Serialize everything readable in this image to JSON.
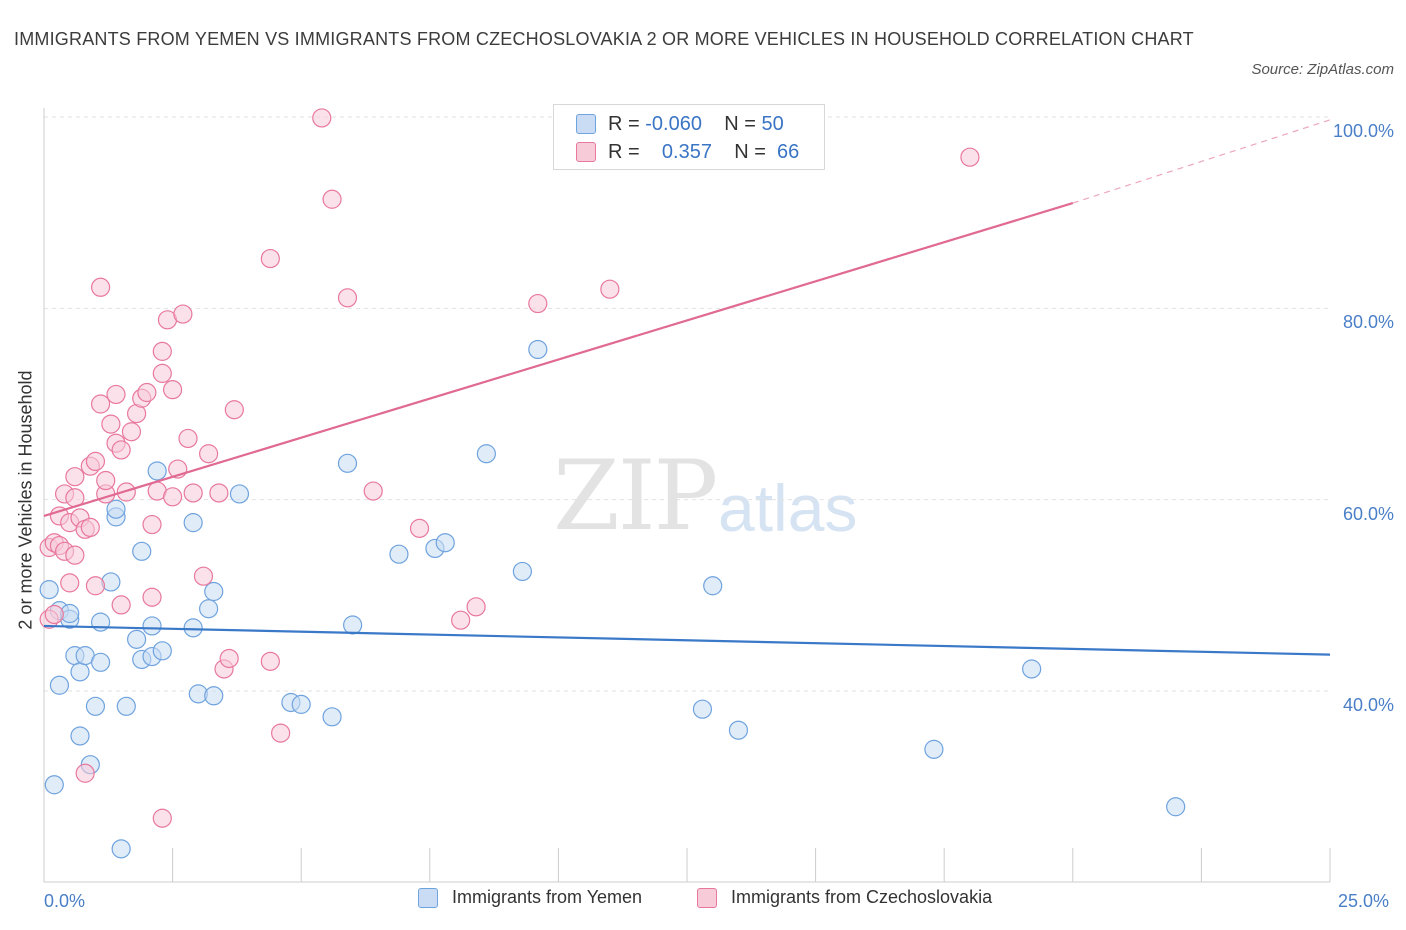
{
  "title": "IMMIGRANTS FROM YEMEN VS IMMIGRANTS FROM CZECHOSLOVAKIA 2 OR MORE VEHICLES IN HOUSEHOLD CORRELATION CHART",
  "source": "Source: ZipAtlas.com",
  "watermark": {
    "zip": "ZIP",
    "atlas": "atlas"
  },
  "colors": {
    "blue": "#6fa3de",
    "blue_fill": "#c9dcf4",
    "pink": "#e8789d",
    "pink_fill": "#f7cbd8",
    "blue_line": "#3a78c8",
    "pink_line": "#e06a93",
    "tick_text": "#4a7fc8"
  },
  "legend": {
    "rows": [
      {
        "r_label": "R =",
        "r_value": "-0.060",
        "n_label": "N =",
        "n_value": "50"
      },
      {
        "r_label": "R =",
        "r_value": "0.357",
        "n_label": "N =",
        "n_value": "66"
      }
    ]
  },
  "chart_data": {
    "type": "scatter",
    "xlabel": "",
    "ylabel": "2 or more Vehicles in Household",
    "xlim": [
      0,
      25
    ],
    "ylim": [
      20,
      100
    ],
    "x_tick_labels": [
      "0.0%",
      "25.0%"
    ],
    "y_tick_labels": [
      "40.0%",
      "60.0%",
      "80.0%",
      "100.0%"
    ],
    "y_ticks": [
      40,
      60,
      80,
      100
    ],
    "grid": true,
    "legend_position": "bottom",
    "series": [
      {
        "name": "Immigrants from Yemen",
        "color": "#6fa3de",
        "trend": {
          "x": [
            0,
            25
          ],
          "y": [
            46.8,
            43.8
          ]
        },
        "points": [
          [
            0.1,
            50.6
          ],
          [
            0.2,
            30.2
          ],
          [
            0.3,
            48.4
          ],
          [
            0.3,
            40.6
          ],
          [
            0.5,
            47.5
          ],
          [
            0.5,
            48.1
          ],
          [
            0.6,
            43.7
          ],
          [
            0.7,
            42.0
          ],
          [
            0.7,
            35.3
          ],
          [
            0.8,
            43.7
          ],
          [
            0.9,
            32.3
          ],
          [
            1.0,
            38.4
          ],
          [
            1.1,
            43.0
          ],
          [
            1.1,
            47.2
          ],
          [
            1.3,
            51.4
          ],
          [
            1.4,
            58.2
          ],
          [
            1.4,
            59.0
          ],
          [
            1.6,
            38.4
          ],
          [
            1.8,
            45.4
          ],
          [
            1.9,
            43.3
          ],
          [
            1.9,
            54.6
          ],
          [
            2.1,
            43.6
          ],
          [
            2.1,
            46.8
          ],
          [
            2.2,
            63.0
          ],
          [
            2.3,
            44.2
          ],
          [
            2.9,
            57.6
          ],
          [
            2.9,
            46.6
          ],
          [
            3.0,
            39.7
          ],
          [
            3.2,
            48.6
          ],
          [
            3.3,
            50.4
          ],
          [
            3.3,
            39.5
          ],
          [
            3.8,
            60.6
          ],
          [
            4.8,
            38.8
          ],
          [
            5.0,
            38.6
          ],
          [
            5.6,
            37.3
          ],
          [
            5.9,
            63.8
          ],
          [
            6.0,
            46.9
          ],
          [
            6.9,
            54.3
          ],
          [
            7.6,
            54.9
          ],
          [
            7.8,
            55.5
          ],
          [
            8.6,
            64.8
          ],
          [
            9.3,
            52.5
          ],
          [
            9.6,
            75.7
          ],
          [
            12.8,
            38.1
          ],
          [
            13.0,
            51.0
          ],
          [
            13.5,
            35.9
          ],
          [
            17.3,
            33.9
          ],
          [
            19.2,
            42.3
          ],
          [
            22.0,
            27.9
          ],
          [
            1.5,
            23.5
          ]
        ]
      },
      {
        "name": "Immigrants from Czechoslovakia",
        "color": "#e8789d",
        "trend": {
          "x": [
            0,
            20
          ],
          "y": [
            58.3,
            91.0
          ]
        },
        "trend_dashed": {
          "x": [
            20,
            25
          ],
          "y": [
            91.0,
            99.7
          ]
        },
        "points": [
          [
            0.1,
            55.0
          ],
          [
            0.1,
            47.5
          ],
          [
            0.2,
            55.5
          ],
          [
            0.3,
            58.3
          ],
          [
            0.3,
            55.2
          ],
          [
            0.4,
            54.6
          ],
          [
            0.4,
            60.6
          ],
          [
            0.5,
            57.6
          ],
          [
            0.5,
            51.3
          ],
          [
            0.6,
            62.4
          ],
          [
            0.6,
            60.2
          ],
          [
            0.7,
            58.1
          ],
          [
            0.8,
            56.9
          ],
          [
            0.9,
            63.5
          ],
          [
            0.9,
            57.1
          ],
          [
            1.0,
            64.0
          ],
          [
            1.0,
            51.0
          ],
          [
            1.1,
            82.2
          ],
          [
            1.1,
            70.0
          ],
          [
            1.2,
            60.6
          ],
          [
            1.2,
            62.0
          ],
          [
            1.3,
            67.9
          ],
          [
            1.4,
            71.0
          ],
          [
            1.4,
            65.9
          ],
          [
            1.5,
            65.2
          ],
          [
            1.6,
            60.8
          ],
          [
            1.7,
            67.1
          ],
          [
            1.8,
            69.0
          ],
          [
            1.9,
            70.6
          ],
          [
            2.0,
            71.2
          ],
          [
            2.1,
            57.4
          ],
          [
            2.1,
            49.8
          ],
          [
            2.2,
            60.9
          ],
          [
            2.3,
            73.2
          ],
          [
            2.3,
            75.5
          ],
          [
            2.4,
            78.8
          ],
          [
            2.5,
            71.5
          ],
          [
            2.5,
            60.3
          ],
          [
            2.6,
            63.2
          ],
          [
            2.7,
            79.4
          ],
          [
            2.8,
            66.4
          ],
          [
            2.9,
            60.7
          ],
          [
            3.2,
            64.8
          ],
          [
            3.4,
            60.7
          ],
          [
            3.5,
            42.3
          ],
          [
            3.6,
            43.4
          ],
          [
            3.7,
            69.4
          ],
          [
            4.4,
            85.2
          ],
          [
            4.4,
            43.1
          ],
          [
            4.6,
            35.6
          ],
          [
            5.4,
            99.9
          ],
          [
            5.6,
            91.4
          ],
          [
            5.9,
            81.1
          ],
          [
            6.4,
            60.9
          ],
          [
            7.3,
            57.0
          ],
          [
            8.1,
            47.4
          ],
          [
            8.4,
            48.8
          ],
          [
            9.6,
            80.5
          ],
          [
            11.0,
            82.0
          ],
          [
            18.0,
            95.8
          ],
          [
            0.8,
            31.4
          ],
          [
            2.3,
            26.7
          ],
          [
            0.2,
            48.0
          ],
          [
            0.6,
            54.2
          ],
          [
            1.5,
            49.0
          ],
          [
            3.1,
            52.0
          ]
        ]
      }
    ]
  },
  "bottom_legend": [
    {
      "label": "Immigrants from Yemen"
    },
    {
      "label": "Immigrants from Czechoslovakia"
    }
  ]
}
